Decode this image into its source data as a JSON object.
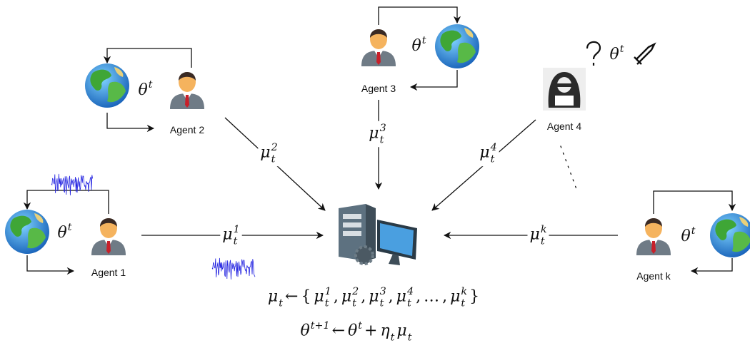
{
  "agents": [
    {
      "label": "Agent 1",
      "theta": {
        "base": "θ",
        "sup": "t"
      },
      "message": {
        "base": "μ",
        "sub": "t",
        "sup": "1",
        "color": "#1a1aff"
      }
    },
    {
      "label": "Agent 2",
      "theta": {
        "base": "θ",
        "sup": "t"
      },
      "message": {
        "base": "μ",
        "sub": "t",
        "sup": "2"
      }
    },
    {
      "label": "Agent 3",
      "theta": {
        "base": "θ",
        "sup": "t"
      },
      "message": {
        "base": "μ",
        "sub": "t",
        "sup": "3"
      }
    },
    {
      "label": "Agent 4",
      "theta": {
        "base": "θ",
        "sup": "t"
      },
      "message": {
        "base": "μ",
        "sub": "t",
        "sup": "4",
        "color": "#e8232a"
      }
    },
    {
      "label": "Agent k",
      "theta": {
        "base": "θ",
        "sup": "t"
      },
      "message": {
        "base": "μ",
        "sub": "t",
        "sup": "k"
      }
    }
  ],
  "aggregation": {
    "lhs": {
      "base": "μ",
      "sub": "t"
    },
    "arrow": "←",
    "open": "{",
    "separator": ",",
    "terms": [
      {
        "base": "μ",
        "sub": "t",
        "sup": "1",
        "color": "#1a1aff"
      },
      {
        "base": "μ",
        "sub": "t",
        "sup": "2"
      },
      {
        "base": "μ",
        "sub": "t",
        "sup": "3"
      },
      {
        "base": "μ",
        "sub": "t",
        "sup": "4",
        "color": "#e8232a"
      },
      "…",
      {
        "base": "μ",
        "sub": "t",
        "sup": "k"
      }
    ],
    "close": "}"
  },
  "update_rule": [
    {
      "base": "θ",
      "sup": "t+1"
    },
    "←",
    {
      "base": "θ",
      "sup": "t"
    },
    "+",
    {
      "base": "η",
      "sub": "t"
    },
    {
      "base": "μ",
      "sub": "t"
    }
  ]
}
